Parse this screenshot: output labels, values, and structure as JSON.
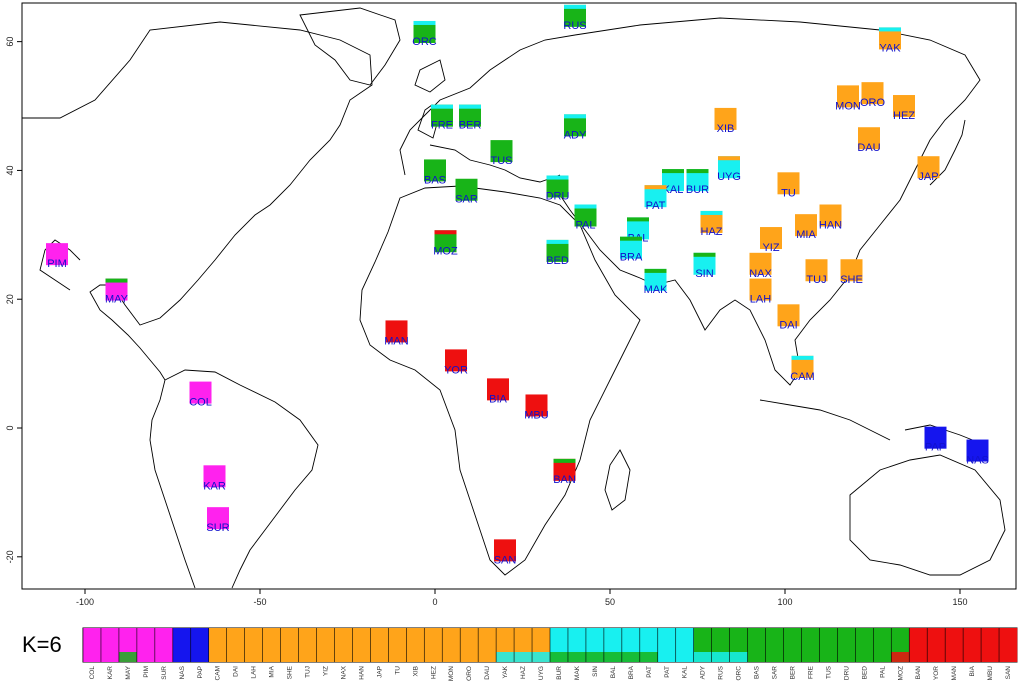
{
  "k_label": "K=6",
  "colors": {
    "magenta": "#ff22ee",
    "blue": "#1515ee",
    "orange": "#ffa41a",
    "cyan": "#18f0f0",
    "green": "#18b418",
    "red": "#ee1010"
  },
  "axes": {
    "x_ticks": [
      -100,
      -50,
      0,
      50,
      100,
      150
    ],
    "y_ticks": [
      -20,
      0,
      20,
      40,
      60
    ],
    "xlim": [
      -118,
      166
    ],
    "ylim": [
      -25,
      66
    ]
  },
  "populations": [
    {
      "code": "PIM",
      "lon": -108,
      "lat": 27,
      "color": "magenta"
    },
    {
      "code": "MAY",
      "lon": -91,
      "lat": 21.5,
      "color": "magenta",
      "stripe": "green"
    },
    {
      "code": "COL",
      "lon": -67,
      "lat": 5.5,
      "color": "magenta"
    },
    {
      "code": "KAR",
      "lon": -63,
      "lat": -7.5,
      "color": "magenta"
    },
    {
      "code": "SUR",
      "lon": -62,
      "lat": -14,
      "color": "magenta"
    },
    {
      "code": "ORC",
      "lon": -3,
      "lat": 61.5,
      "color": "green",
      "stripe": "cyan"
    },
    {
      "code": "FRE",
      "lon": 2,
      "lat": 48.5,
      "color": "green",
      "stripe": "cyan"
    },
    {
      "code": "BER",
      "lon": 10,
      "lat": 48.5,
      "color": "green",
      "stripe": "cyan"
    },
    {
      "code": "BAS",
      "lon": 0,
      "lat": 40,
      "color": "green"
    },
    {
      "code": "TUS",
      "lon": 19,
      "lat": 43,
      "color": "green"
    },
    {
      "code": "SAR",
      "lon": 9,
      "lat": 37,
      "color": "green"
    },
    {
      "code": "MOZ",
      "lon": 3,
      "lat": 29,
      "color": "green",
      "stripe": "red"
    },
    {
      "code": "RUS",
      "lon": 40,
      "lat": 64,
      "color": "green",
      "stripe": "cyan"
    },
    {
      "code": "ADY",
      "lon": 40,
      "lat": 47,
      "color": "green",
      "stripe": "cyan"
    },
    {
      "code": "DRU",
      "lon": 35,
      "lat": 37.5,
      "color": "green",
      "stripe": "cyan"
    },
    {
      "code": "PAL",
      "lon": 43,
      "lat": 33,
      "color": "green",
      "stripe": "cyan"
    },
    {
      "code": "BED",
      "lon": 35,
      "lat": 27.5,
      "color": "green",
      "stripe": "cyan"
    },
    {
      "code": "MAN",
      "lon": -11,
      "lat": 15,
      "color": "red"
    },
    {
      "code": "YOR",
      "lon": 6,
      "lat": 10.5,
      "color": "red"
    },
    {
      "code": "BIA",
      "lon": 18,
      "lat": 6,
      "color": "red"
    },
    {
      "code": "MBU",
      "lon": 29,
      "lat": 3.5,
      "color": "red"
    },
    {
      "code": "BAN",
      "lon": 37,
      "lat": -6.5,
      "color": "red",
      "stripe": "green"
    },
    {
      "code": "SAN",
      "lon": 20,
      "lat": -19,
      "color": "red"
    },
    {
      "code": "PAP",
      "lon": 143,
      "lat": -1.5,
      "color": "blue"
    },
    {
      "code": "NAS",
      "lon": 155,
      "lat": -3.5,
      "color": "blue"
    },
    {
      "code": "XIB",
      "lon": 83,
      "lat": 48,
      "color": "orange"
    },
    {
      "code": "UYG",
      "lon": 84,
      "lat": 40.5,
      "color": "cyan",
      "stripe": "orange"
    },
    {
      "code": "BUR",
      "lon": 75,
      "lat": 38.5,
      "color": "cyan",
      "stripe": "green"
    },
    {
      "code": "KAL",
      "lon": 68,
      "lat": 38.5,
      "color": "cyan",
      "stripe": "green"
    },
    {
      "code": "PAT",
      "lon": 63,
      "lat": 36,
      "color": "cyan",
      "stripe": "orange"
    },
    {
      "code": "BAL",
      "lon": 58,
      "lat": 31,
      "color": "cyan",
      "stripe": "green"
    },
    {
      "code": "HAZ",
      "lon": 79,
      "lat": 32,
      "color": "orange",
      "stripe": "cyan"
    },
    {
      "code": "BRA",
      "lon": 56,
      "lat": 28,
      "color": "cyan",
      "stripe": "green"
    },
    {
      "code": "MAK",
      "lon": 63,
      "lat": 23,
      "color": "cyan",
      "stripe": "green"
    },
    {
      "code": "SIN",
      "lon": 77,
      "lat": 25.5,
      "color": "cyan",
      "stripe": "green"
    },
    {
      "code": "TU",
      "lon": 101,
      "lat": 38,
      "color": "orange"
    },
    {
      "code": "YAK",
      "lon": 130,
      "lat": 60.5,
      "color": "orange",
      "stripe": "cyan"
    },
    {
      "code": "MON",
      "lon": 118,
      "lat": 51.5,
      "color": "orange"
    },
    {
      "code": "ORO",
      "lon": 125,
      "lat": 52,
      "color": "orange"
    },
    {
      "code": "DAU",
      "lon": 124,
      "lat": 45,
      "color": "orange"
    },
    {
      "code": "HEZ",
      "lon": 134,
      "lat": 50,
      "color": "orange"
    },
    {
      "code": "JAP",
      "lon": 141,
      "lat": 40.5,
      "color": "orange"
    },
    {
      "code": "HAN",
      "lon": 113,
      "lat": 33,
      "color": "orange"
    },
    {
      "code": "MIA",
      "lon": 106,
      "lat": 31.5,
      "color": "orange"
    },
    {
      "code": "YIZ",
      "lon": 96,
      "lat": 29.5,
      "color": "orange"
    },
    {
      "code": "NAX",
      "lon": 93,
      "lat": 25.5,
      "color": "orange"
    },
    {
      "code": "TUJ",
      "lon": 109,
      "lat": 24.5,
      "color": "orange"
    },
    {
      "code": "SHE",
      "lon": 119,
      "lat": 24.5,
      "color": "orange"
    },
    {
      "code": "LAH",
      "lon": 93,
      "lat": 21.5,
      "color": "orange"
    },
    {
      "code": "DAI",
      "lon": 101,
      "lat": 17.5,
      "color": "orange"
    },
    {
      "code": "CAM",
      "lon": 105,
      "lat": 9.5,
      "color": "orange",
      "stripe": "cyan"
    }
  ],
  "bar_groups": [
    {
      "code": "COL",
      "color": "magenta"
    },
    {
      "code": "KAR",
      "color": "magenta"
    },
    {
      "code": "MAY",
      "color": "magenta",
      "mix": "green"
    },
    {
      "code": "PIM",
      "color": "magenta"
    },
    {
      "code": "SUR",
      "color": "magenta"
    },
    {
      "code": "NAS",
      "color": "blue"
    },
    {
      "code": "PAP",
      "color": "blue"
    },
    {
      "code": "CAM",
      "color": "orange"
    },
    {
      "code": "DAI",
      "color": "orange"
    },
    {
      "code": "LAH",
      "color": "orange"
    },
    {
      "code": "MIA",
      "color": "orange"
    },
    {
      "code": "SHE",
      "color": "orange"
    },
    {
      "code": "TUJ",
      "color": "orange"
    },
    {
      "code": "YIZ",
      "color": "orange"
    },
    {
      "code": "NAX",
      "color": "orange"
    },
    {
      "code": "HAN",
      "color": "orange"
    },
    {
      "code": "JAP",
      "color": "orange"
    },
    {
      "code": "TU",
      "color": "orange"
    },
    {
      "code": "XIB",
      "color": "orange"
    },
    {
      "code": "HEZ",
      "color": "orange"
    },
    {
      "code": "MON",
      "color": "orange"
    },
    {
      "code": "ORO",
      "color": "orange"
    },
    {
      "code": "DAU",
      "color": "orange"
    },
    {
      "code": "YAK",
      "color": "orange",
      "mix": "cyan"
    },
    {
      "code": "HAZ",
      "color": "orange",
      "mix": "cyan"
    },
    {
      "code": "UYG",
      "color": "orange",
      "mix": "cyan"
    },
    {
      "code": "BUR",
      "color": "cyan",
      "mix": "green"
    },
    {
      "code": "MAK",
      "color": "cyan",
      "mix": "green"
    },
    {
      "code": "SIN",
      "color": "cyan",
      "mix": "green"
    },
    {
      "code": "BAL",
      "color": "cyan",
      "mix": "green"
    },
    {
      "code": "BRA",
      "color": "cyan",
      "mix": "green"
    },
    {
      "code": "PAT",
      "color": "cyan",
      "mix": "green"
    },
    {
      "code": "PAT2",
      "label": "PAT",
      "color": "cyan"
    },
    {
      "code": "KAL",
      "color": "cyan"
    },
    {
      "code": "ADY",
      "color": "green",
      "mix": "cyan"
    },
    {
      "code": "RUS",
      "color": "green",
      "mix": "cyan"
    },
    {
      "code": "ORC",
      "color": "green",
      "mix": "cyan"
    },
    {
      "code": "BAS",
      "color": "green"
    },
    {
      "code": "SAR",
      "color": "green"
    },
    {
      "code": "BER",
      "color": "green"
    },
    {
      "code": "FRE",
      "color": "green"
    },
    {
      "code": "TUS",
      "color": "green"
    },
    {
      "code": "DRU",
      "color": "green"
    },
    {
      "code": "BED",
      "color": "green"
    },
    {
      "code": "PAL",
      "color": "green"
    },
    {
      "code": "MOZ",
      "color": "green",
      "mix": "red"
    },
    {
      "code": "BAN",
      "color": "red"
    },
    {
      "code": "YOR",
      "color": "red"
    },
    {
      "code": "MAN",
      "color": "red"
    },
    {
      "code": "BIA",
      "color": "red"
    },
    {
      "code": "MBU",
      "color": "red"
    },
    {
      "code": "SAN",
      "color": "red"
    }
  ]
}
